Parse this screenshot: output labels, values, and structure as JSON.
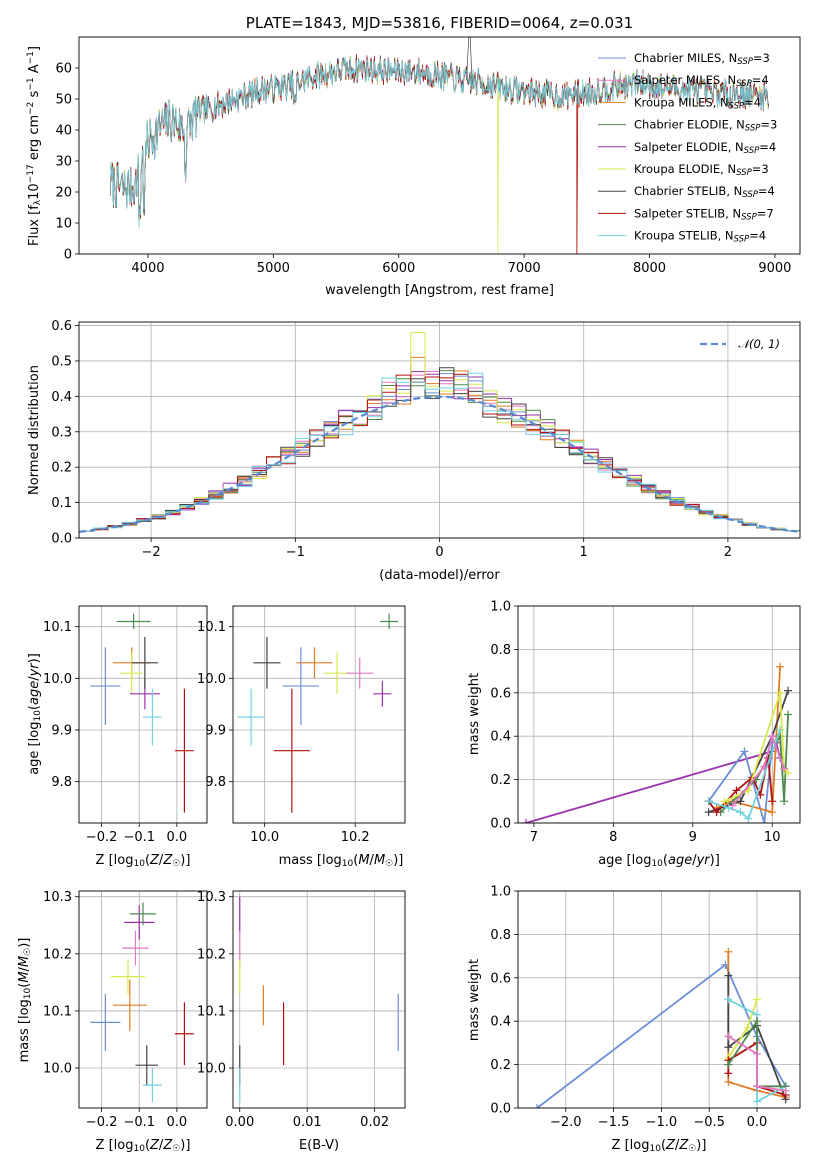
{
  "colors": {
    "chabrier_miles": "#6b8fd6",
    "salpeter_miles": "#e377c2",
    "kroupa_miles": "#e07b24",
    "chabrier_elodie": "#4f8a4f",
    "salpeter_elodie": "#9b30b0",
    "kroupa_elodie": "#d9e84a",
    "chabrier_stelib": "#444444",
    "salpeter_stelib": "#b01010",
    "kroupa_stelib": "#6fd3e0",
    "grid": "#b0b0b0",
    "normal_curve": "#5a8bd0"
  },
  "chart_data": [
    {
      "type": "line",
      "panel": "spectrum",
      "title": "PLATE=1843, MJD=53816, FIBERID=0064, z=0.031",
      "xlabel": "wavelength [Angstrom, rest frame]",
      "ylabel": "Flux [f_λ10^-17 erg cm^-2 s^-1 A^-1]",
      "xlim": [
        3450,
        9200
      ],
      "ylim": [
        0,
        70
      ],
      "xticks": [
        "4000",
        "5000",
        "6000",
        "7000",
        "8000",
        "9000"
      ],
      "yticks": [
        "0",
        "10",
        "20",
        "30",
        "40",
        "50",
        "60"
      ],
      "legend_position": "top-right",
      "continuum": {
        "x": [
          3700,
          3800,
          3900,
          3950,
          4000,
          4100,
          4200,
          4300,
          4400,
          4500,
          4700,
          4900,
          5100,
          5300,
          5500,
          5700,
          5900,
          6100,
          6300,
          6500,
          6700,
          6900,
          7100,
          7300,
          7500,
          7700,
          7900,
          8100,
          8300,
          8500,
          8700,
          8900
        ],
        "y": [
          23,
          21,
          22,
          30,
          36,
          41,
          43,
          40,
          46,
          47,
          50,
          53,
          54,
          57,
          59,
          60,
          59,
          59,
          58,
          56,
          55,
          53,
          52,
          51,
          52,
          54,
          55,
          54,
          53,
          52,
          52,
          51
        ]
      },
      "series": [
        {
          "name": "Chabrier MILES, N_SSP=3",
          "color_key": "chabrier_miles"
        },
        {
          "name": "Salpeter MILES, N_SSP=4",
          "color_key": "salpeter_miles"
        },
        {
          "name": "Kroupa MILES, N_SSP=4",
          "color_key": "kroupa_miles",
          "dropout_at": 7420
        },
        {
          "name": "Chabrier ELODIE, N_SSP=3",
          "color_key": "chabrier_elodie"
        },
        {
          "name": "Salpeter ELODIE, N_SSP=4",
          "color_key": "salpeter_elodie"
        },
        {
          "name": "Kroupa ELODIE, N_SSP=3",
          "color_key": "kroupa_elodie",
          "dropout_at": 6790
        },
        {
          "name": "Chabrier STELIB, N_SSP=4",
          "color_key": "chabrier_stelib"
        },
        {
          "name": "Salpeter STELIB, N_SSP=7",
          "color_key": "salpeter_stelib",
          "dropout_at": 7420
        },
        {
          "name": "Kroupa STELIB, N_SSP=4",
          "color_key": "kroupa_stelib"
        }
      ]
    },
    {
      "type": "bar",
      "panel": "residuals",
      "xlabel": "(data-model)/error",
      "ylabel": "Normed distribution",
      "xlim": [
        -2.5,
        2.5
      ],
      "ylim": [
        0,
        0.61
      ],
      "xticks": [
        "−2",
        "−1",
        "0",
        "1",
        "2"
      ],
      "yticks": [
        "0.0",
        "0.1",
        "0.2",
        "0.3",
        "0.4",
        "0.5",
        "0.6"
      ],
      "grid": true,
      "legend": "𝒩(0, 1)",
      "legend_position": "top-right",
      "bin_width": 0.1,
      "peak_values_by_series": [
        0.44,
        0.46,
        0.51,
        0.43,
        0.47,
        0.58,
        0.45,
        0.44,
        0.44
      ]
    },
    {
      "type": "scatter",
      "panel": "age-vs-Z",
      "xlabel": "Z [log10(Z/Z☉)]",
      "ylabel": "age [log10(age/yr)]",
      "xlim": [
        -0.26,
        0.08
      ],
      "ylim": [
        9.72,
        10.14
      ],
      "xticks": [
        "−0.2",
        "−0.1",
        "0.0"
      ],
      "yticks": [
        "9.8",
        "9.9",
        "10.0",
        "10.1"
      ],
      "points": [
        {
          "x": -0.19,
          "y": 9.985,
          "xerr": 0.04,
          "yerr": 0.075,
          "color_key": "chabrier_miles"
        },
        {
          "x": -0.12,
          "y": 10.03,
          "xerr": 0.05,
          "yerr": 0.03,
          "color_key": "kroupa_miles"
        },
        {
          "x": -0.12,
          "y": 10.01,
          "xerr": 0.03,
          "yerr": 0.04,
          "color_key": "kroupa_elodie"
        },
        {
          "x": -0.115,
          "y": 10.11,
          "xerr": 0.045,
          "yerr": 0.015,
          "color_key": "chabrier_elodie"
        },
        {
          "x": -0.085,
          "y": 9.97,
          "xerr": 0.04,
          "yerr": 0.03,
          "color_key": "salpeter_elodie"
        },
        {
          "x": -0.085,
          "y": 10.03,
          "xerr": 0.035,
          "yerr": 0.05,
          "color_key": "chabrier_stelib"
        },
        {
          "x": -0.065,
          "y": 9.925,
          "xerr": 0.025,
          "yerr": 0.055,
          "color_key": "kroupa_stelib"
        },
        {
          "x": 0.02,
          "y": 9.86,
          "xerr": 0.025,
          "yerr": 0.12,
          "color_key": "salpeter_stelib"
        }
      ]
    },
    {
      "type": "scatter",
      "panel": "age-vs-mass",
      "xlabel": "mass [log10(M/M☉)]",
      "ylabel": "",
      "xlim": [
        9.93,
        10.31
      ],
      "ylim": [
        9.72,
        10.14
      ],
      "xticks": [
        "10.0",
        "10.2"
      ],
      "yticks": [
        "9.8",
        "9.9",
        "10.0",
        "10.1"
      ],
      "points": [
        {
          "x": 9.97,
          "y": 9.925,
          "xerr": 0.03,
          "yerr": 0.055,
          "color_key": "kroupa_stelib"
        },
        {
          "x": 10.005,
          "y": 10.03,
          "xerr": 0.03,
          "yerr": 0.05,
          "color_key": "chabrier_stelib"
        },
        {
          "x": 10.06,
          "y": 9.86,
          "xerr": 0.04,
          "yerr": 0.12,
          "color_key": "salpeter_stelib"
        },
        {
          "x": 10.08,
          "y": 9.985,
          "xerr": 0.04,
          "yerr": 0.075,
          "color_key": "chabrier_miles"
        },
        {
          "x": 10.11,
          "y": 10.03,
          "xerr": 0.04,
          "yerr": 0.03,
          "color_key": "kroupa_miles"
        },
        {
          "x": 10.16,
          "y": 10.01,
          "xerr": 0.03,
          "yerr": 0.04,
          "color_key": "kroupa_elodie"
        },
        {
          "x": 10.21,
          "y": 10.01,
          "xerr": 0.03,
          "yerr": 0.03,
          "color_key": "salpeter_miles"
        },
        {
          "x": 10.26,
          "y": 9.97,
          "xerr": 0.02,
          "yerr": 0.025,
          "color_key": "salpeter_elodie"
        },
        {
          "x": 10.275,
          "y": 10.11,
          "xerr": 0.02,
          "yerr": 0.015,
          "color_key": "chabrier_elodie"
        }
      ]
    },
    {
      "type": "line",
      "panel": "weight-vs-age",
      "xlabel": "age [log10(age/yr)]",
      "ylabel": "mass weight",
      "xlim": [
        6.8,
        10.35
      ],
      "ylim": [
        0,
        1
      ],
      "xticks": [
        "7",
        "8",
        "9",
        "10"
      ],
      "yticks": [
        "0.0",
        "0.2",
        "0.4",
        "0.6",
        "0.8",
        "1.0"
      ],
      "grid": true,
      "series": [
        {
          "color_key": "salpeter_elodie",
          "x": [
            6.9,
            10.0,
            10.05,
            10.1
          ],
          "y": [
            0.0,
            0.33,
            0.37,
            0.3
          ]
        },
        {
          "color_key": "chabrier_miles",
          "x": [
            9.2,
            9.65,
            9.9,
            10.0
          ],
          "y": [
            0.1,
            0.33,
            0.0,
            0.37
          ]
        },
        {
          "color_key": "kroupa_miles",
          "x": [
            9.3,
            9.5,
            10.0,
            10.1
          ],
          "y": [
            0.07,
            0.1,
            0.05,
            0.72
          ]
        },
        {
          "color_key": "chabrier_elodie",
          "x": [
            9.35,
            9.8,
            10.1,
            10.15,
            10.2
          ],
          "y": [
            0.05,
            0.2,
            0.4,
            0.1,
            0.5
          ]
        },
        {
          "color_key": "chabrier_stelib",
          "x": [
            9.2,
            9.6,
            10.0,
            10.2
          ],
          "y": [
            0.05,
            0.1,
            0.4,
            0.61
          ]
        },
        {
          "color_key": "salpeter_stelib",
          "x": [
            9.2,
            9.3,
            9.55,
            9.75,
            9.85,
            9.95,
            10.0
          ],
          "y": [
            0.1,
            0.05,
            0.15,
            0.21,
            0.13,
            0.3,
            0.1
          ]
        },
        {
          "color_key": "kroupa_stelib",
          "x": [
            9.2,
            9.45,
            9.6,
            9.7,
            10.1
          ],
          "y": [
            0.1,
            0.07,
            0.05,
            0.02,
            0.43
          ]
        },
        {
          "color_key": "kroupa_elodie",
          "x": [
            9.4,
            9.7,
            10.1,
            10.15,
            10.2
          ],
          "y": [
            0.1,
            0.15,
            0.6,
            0.25,
            0.23
          ]
        },
        {
          "color_key": "salpeter_miles",
          "x": [
            9.5,
            9.9,
            10.0,
            10.15
          ],
          "y": [
            0.08,
            0.26,
            0.4,
            0.25
          ]
        }
      ]
    },
    {
      "type": "scatter",
      "panel": "mass-vs-Z",
      "xlabel": "Z [log10(Z/Z☉)]",
      "ylabel": "mass [log10(M/M☉)]",
      "xlim": [
        -0.26,
        0.08
      ],
      "ylim": [
        9.93,
        10.31
      ],
      "xticks": [
        "−0.2",
        "−0.1",
        "0.0"
      ],
      "yticks": [
        "10.0",
        "10.1",
        "10.2",
        "10.3"
      ],
      "points": [
        {
          "x": -0.19,
          "y": 10.08,
          "xerr": 0.04,
          "yerr": 0.05,
          "color_key": "chabrier_miles"
        },
        {
          "x": -0.125,
          "y": 10.11,
          "xerr": 0.045,
          "yerr": 0.045,
          "color_key": "kroupa_miles"
        },
        {
          "x": -0.13,
          "y": 10.16,
          "xerr": 0.045,
          "yerr": 0.03,
          "color_key": "kroupa_elodie"
        },
        {
          "x": -0.11,
          "y": 10.21,
          "xerr": 0.035,
          "yerr": 0.03,
          "color_key": "salpeter_miles"
        },
        {
          "x": -0.1,
          "y": 10.255,
          "xerr": 0.04,
          "yerr": 0.03,
          "color_key": "salpeter_elodie"
        },
        {
          "x": -0.09,
          "y": 10.27,
          "xerr": 0.035,
          "yerr": 0.02,
          "color_key": "chabrier_elodie"
        },
        {
          "x": -0.08,
          "y": 10.005,
          "xerr": 0.03,
          "yerr": 0.035,
          "color_key": "chabrier_stelib"
        },
        {
          "x": -0.065,
          "y": 9.97,
          "xerr": 0.025,
          "yerr": 0.03,
          "color_key": "kroupa_stelib"
        },
        {
          "x": 0.02,
          "y": 10.06,
          "xerr": 0.025,
          "yerr": 0.055,
          "color_key": "salpeter_stelib"
        }
      ]
    },
    {
      "type": "scatter",
      "panel": "mass-vs-EBV",
      "xlabel": "E(B-V)",
      "ylabel": "",
      "xlim": [
        -0.001,
        0.0245
      ],
      "ylim": [
        9.93,
        10.31
      ],
      "xticks": [
        "0.00",
        "0.01",
        "0.02"
      ],
      "yticks": [
        "10.0",
        "10.1",
        "10.2",
        "10.3"
      ],
      "points": [
        {
          "x": 0.0,
          "y": 10.27,
          "xerr": 0.0,
          "yerr": 0.03,
          "color_key": "salpeter_elodie"
        },
        {
          "x": 0.0,
          "y": 10.21,
          "xerr": 0.0,
          "yerr": 0.03,
          "color_key": "salpeter_miles"
        },
        {
          "x": 0.0,
          "y": 10.16,
          "xerr": 0.0,
          "yerr": 0.03,
          "color_key": "kroupa_elodie"
        },
        {
          "x": 0.0,
          "y": 10.005,
          "xerr": 0.0,
          "yerr": 0.035,
          "color_key": "chabrier_stelib"
        },
        {
          "x": 0.0,
          "y": 9.97,
          "xerr": 0.0,
          "yerr": 0.03,
          "color_key": "kroupa_stelib"
        },
        {
          "x": 0.0035,
          "y": 10.11,
          "xerr": 0.0,
          "yerr": 0.035,
          "color_key": "kroupa_miles"
        },
        {
          "x": 0.0065,
          "y": 10.06,
          "xerr": 0.0,
          "yerr": 0.055,
          "color_key": "salpeter_stelib"
        },
        {
          "x": 0.0235,
          "y": 10.08,
          "xerr": 0.0,
          "yerr": 0.05,
          "color_key": "chabrier_miles"
        }
      ]
    },
    {
      "type": "line",
      "panel": "weight-vs-Z",
      "xlabel": "Z [log10(Z/Z☉)]",
      "ylabel": "mass weight",
      "xlim": [
        -2.5,
        0.45
      ],
      "ylim": [
        0,
        1
      ],
      "xticks": [
        "−2.0",
        "−1.5",
        "−1.0",
        "−0.5",
        "0.0"
      ],
      "yticks": [
        "0.0",
        "0.2",
        "0.4",
        "0.6",
        "0.8",
        "1.0"
      ],
      "grid": true,
      "series": [
        {
          "color_key": "chabrier_miles",
          "x": [
            -2.3,
            -0.33,
            0.0,
            0.3
          ],
          "y": [
            0.0,
            0.66,
            0.33,
            0.1
          ]
        },
        {
          "color_key": "kroupa_miles",
          "x": [
            -0.3,
            -0.3,
            0.0,
            0.3
          ],
          "y": [
            0.72,
            0.12,
            0.08,
            0.05
          ]
        },
        {
          "color_key": "chabrier_stelib",
          "x": [
            -0.3,
            -0.3,
            0.0,
            0.3
          ],
          "y": [
            0.61,
            0.28,
            0.38,
            0.04
          ]
        },
        {
          "color_key": "kroupa_elodie",
          "x": [
            -0.3,
            -0.1,
            0.0
          ],
          "y": [
            0.23,
            0.37,
            0.5
          ]
        },
        {
          "color_key": "salpeter_stelib",
          "x": [
            -0.3,
            -0.3,
            0.0,
            0.0,
            0.3
          ],
          "y": [
            0.16,
            0.22,
            0.3,
            0.1,
            0.06
          ]
        },
        {
          "color_key": "kroupa_stelib",
          "x": [
            -0.3,
            0.0,
            0.0,
            0.3
          ],
          "y": [
            0.5,
            0.43,
            0.03,
            0.1
          ]
        },
        {
          "color_key": "chabrier_elodie",
          "x": [
            -0.3,
            0.0,
            0.0,
            0.3
          ],
          "y": [
            0.2,
            0.4,
            0.1,
            0.1
          ]
        },
        {
          "color_key": "salpeter_miles",
          "x": [
            -0.3,
            0.0,
            0.0,
            0.3
          ],
          "y": [
            0.33,
            0.25,
            0.1,
            0.08
          ]
        }
      ]
    }
  ]
}
